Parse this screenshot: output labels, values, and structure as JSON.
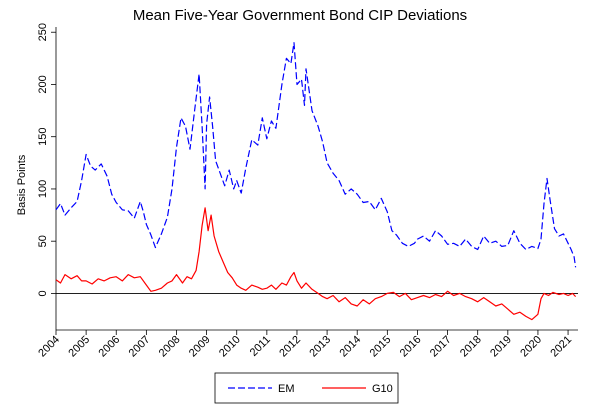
{
  "chart_data": {
    "type": "line",
    "title": "Mean Five-Year Government Bond CIP Deviations",
    "xlabel": "",
    "ylabel": "Basis Points",
    "xlim": [
      2004,
      2021.33
    ],
    "ylim": [
      -35,
      255
    ],
    "yticks": [
      0,
      50,
      100,
      150,
      200,
      250
    ],
    "xticks": [
      "2004",
      "2005",
      "2006",
      "2007",
      "2008",
      "2009",
      "2010",
      "2011",
      "2012",
      "2013",
      "2014",
      "2015",
      "2016",
      "2017",
      "2018",
      "2019",
      "2020",
      "2021"
    ],
    "grid": false,
    "legend": "bottom",
    "reference_line": 0,
    "series": [
      {
        "name": "EM",
        "color": "#0000ff",
        "dash": "dashed",
        "points": [
          [
            2004.0,
            80
          ],
          [
            2004.15,
            86
          ],
          [
            2004.3,
            75
          ],
          [
            2004.5,
            82
          ],
          [
            2004.7,
            88
          ],
          [
            2004.85,
            108
          ],
          [
            2005.0,
            133
          ],
          [
            2005.15,
            122
          ],
          [
            2005.3,
            118
          ],
          [
            2005.5,
            124
          ],
          [
            2005.7,
            112
          ],
          [
            2005.85,
            95
          ],
          [
            2006.0,
            87
          ],
          [
            2006.2,
            80
          ],
          [
            2006.4,
            79
          ],
          [
            2006.6,
            72
          ],
          [
            2006.8,
            88
          ],
          [
            2006.9,
            78
          ],
          [
            2007.0,
            66
          ],
          [
            2007.15,
            56
          ],
          [
            2007.3,
            44
          ],
          [
            2007.5,
            57
          ],
          [
            2007.7,
            73
          ],
          [
            2007.85,
            100
          ],
          [
            2008.0,
            140
          ],
          [
            2008.15,
            168
          ],
          [
            2008.3,
            160
          ],
          [
            2008.45,
            138
          ],
          [
            2008.6,
            175
          ],
          [
            2008.75,
            210
          ],
          [
            2008.85,
            160
          ],
          [
            2008.95,
            100
          ],
          [
            2009.0,
            162
          ],
          [
            2009.1,
            188
          ],
          [
            2009.2,
            160
          ],
          [
            2009.3,
            127
          ],
          [
            2009.45,
            115
          ],
          [
            2009.6,
            103
          ],
          [
            2009.75,
            118
          ],
          [
            2009.9,
            100
          ],
          [
            2010.0,
            108
          ],
          [
            2010.15,
            96
          ],
          [
            2010.3,
            120
          ],
          [
            2010.5,
            147
          ],
          [
            2010.7,
            142
          ],
          [
            2010.85,
            168
          ],
          [
            2011.0,
            148
          ],
          [
            2011.15,
            165
          ],
          [
            2011.3,
            158
          ],
          [
            2011.5,
            200
          ],
          [
            2011.65,
            225
          ],
          [
            2011.8,
            220
          ],
          [
            2011.9,
            240
          ],
          [
            2012.0,
            200
          ],
          [
            2012.15,
            205
          ],
          [
            2012.25,
            180
          ],
          [
            2012.3,
            215
          ],
          [
            2012.5,
            175
          ],
          [
            2012.7,
            160
          ],
          [
            2012.85,
            145
          ],
          [
            2013.0,
            125
          ],
          [
            2013.2,
            115
          ],
          [
            2013.4,
            108
          ],
          [
            2013.6,
            95
          ],
          [
            2013.8,
            100
          ],
          [
            2014.0,
            95
          ],
          [
            2014.2,
            87
          ],
          [
            2014.4,
            88
          ],
          [
            2014.6,
            80
          ],
          [
            2014.8,
            91
          ],
          [
            2015.0,
            78
          ],
          [
            2015.15,
            60
          ],
          [
            2015.3,
            56
          ],
          [
            2015.5,
            48
          ],
          [
            2015.7,
            45
          ],
          [
            2015.9,
            48
          ],
          [
            2016.0,
            52
          ],
          [
            2016.2,
            55
          ],
          [
            2016.4,
            50
          ],
          [
            2016.6,
            60
          ],
          [
            2016.8,
            55
          ],
          [
            2017.0,
            47
          ],
          [
            2017.2,
            48
          ],
          [
            2017.4,
            45
          ],
          [
            2017.6,
            52
          ],
          [
            2017.8,
            45
          ],
          [
            2018.0,
            42
          ],
          [
            2018.2,
            55
          ],
          [
            2018.4,
            48
          ],
          [
            2018.6,
            50
          ],
          [
            2018.8,
            45
          ],
          [
            2019.0,
            46
          ],
          [
            2019.2,
            60
          ],
          [
            2019.4,
            48
          ],
          [
            2019.6,
            42
          ],
          [
            2019.8,
            45
          ],
          [
            2020.0,
            43
          ],
          [
            2020.1,
            52
          ],
          [
            2020.2,
            86
          ],
          [
            2020.3,
            110
          ],
          [
            2020.4,
            90
          ],
          [
            2020.55,
            62
          ],
          [
            2020.7,
            55
          ],
          [
            2020.85,
            57
          ],
          [
            2021.0,
            48
          ],
          [
            2021.1,
            42
          ],
          [
            2021.2,
            35
          ],
          [
            2021.25,
            25
          ]
        ]
      },
      {
        "name": "G10",
        "color": "#ff0000",
        "dash": "solid",
        "points": [
          [
            2004.0,
            13
          ],
          [
            2004.15,
            10
          ],
          [
            2004.3,
            18
          ],
          [
            2004.5,
            14
          ],
          [
            2004.7,
            17
          ],
          [
            2004.85,
            12
          ],
          [
            2005.0,
            12
          ],
          [
            2005.2,
            9
          ],
          [
            2005.4,
            14
          ],
          [
            2005.6,
            12
          ],
          [
            2005.8,
            15
          ],
          [
            2006.0,
            16
          ],
          [
            2006.2,
            12
          ],
          [
            2006.4,
            18
          ],
          [
            2006.6,
            15
          ],
          [
            2006.8,
            16
          ],
          [
            2007.0,
            8
          ],
          [
            2007.15,
            2
          ],
          [
            2007.3,
            3
          ],
          [
            2007.5,
            5
          ],
          [
            2007.7,
            10
          ],
          [
            2007.85,
            12
          ],
          [
            2008.0,
            18
          ],
          [
            2008.2,
            10
          ],
          [
            2008.35,
            16
          ],
          [
            2008.5,
            14
          ],
          [
            2008.65,
            22
          ],
          [
            2008.75,
            40
          ],
          [
            2008.85,
            65
          ],
          [
            2008.95,
            82
          ],
          [
            2009.05,
            60
          ],
          [
            2009.15,
            75
          ],
          [
            2009.25,
            55
          ],
          [
            2009.4,
            40
          ],
          [
            2009.55,
            30
          ],
          [
            2009.7,
            20
          ],
          [
            2009.85,
            15
          ],
          [
            2010.0,
            8
          ],
          [
            2010.15,
            5
          ],
          [
            2010.3,
            3
          ],
          [
            2010.5,
            8
          ],
          [
            2010.7,
            6
          ],
          [
            2010.85,
            4
          ],
          [
            2011.0,
            5
          ],
          [
            2011.15,
            8
          ],
          [
            2011.3,
            4
          ],
          [
            2011.5,
            10
          ],
          [
            2011.65,
            8
          ],
          [
            2011.8,
            16
          ],
          [
            2011.9,
            20
          ],
          [
            2012.0,
            12
          ],
          [
            2012.15,
            5
          ],
          [
            2012.3,
            10
          ],
          [
            2012.5,
            4
          ],
          [
            2012.7,
            0
          ],
          [
            2012.85,
            -3
          ],
          [
            2013.0,
            -5
          ],
          [
            2013.2,
            -2
          ],
          [
            2013.4,
            -8
          ],
          [
            2013.6,
            -4
          ],
          [
            2013.8,
            -10
          ],
          [
            2014.0,
            -12
          ],
          [
            2014.2,
            -6
          ],
          [
            2014.4,
            -10
          ],
          [
            2014.6,
            -5
          ],
          [
            2014.8,
            -3
          ],
          [
            2015.0,
            0
          ],
          [
            2015.2,
            1
          ],
          [
            2015.4,
            -3
          ],
          [
            2015.6,
            0
          ],
          [
            2015.8,
            -6
          ],
          [
            2016.0,
            -4
          ],
          [
            2016.2,
            -2
          ],
          [
            2016.4,
            -4
          ],
          [
            2016.6,
            -1
          ],
          [
            2016.8,
            -3
          ],
          [
            2017.0,
            2
          ],
          [
            2017.2,
            -2
          ],
          [
            2017.4,
            0
          ],
          [
            2017.6,
            -3
          ],
          [
            2017.8,
            -5
          ],
          [
            2018.0,
            -8
          ],
          [
            2018.2,
            -4
          ],
          [
            2018.4,
            -8
          ],
          [
            2018.6,
            -12
          ],
          [
            2018.8,
            -10
          ],
          [
            2019.0,
            -15
          ],
          [
            2019.2,
            -20
          ],
          [
            2019.4,
            -18
          ],
          [
            2019.6,
            -22
          ],
          [
            2019.8,
            -25
          ],
          [
            2020.0,
            -20
          ],
          [
            2020.1,
            -5
          ],
          [
            2020.2,
            0
          ],
          [
            2020.35,
            -2
          ],
          [
            2020.5,
            1
          ],
          [
            2020.7,
            -1
          ],
          [
            2020.85,
            0
          ],
          [
            2021.0,
            -2
          ],
          [
            2021.15,
            0
          ],
          [
            2021.25,
            -3
          ]
        ]
      }
    ]
  }
}
